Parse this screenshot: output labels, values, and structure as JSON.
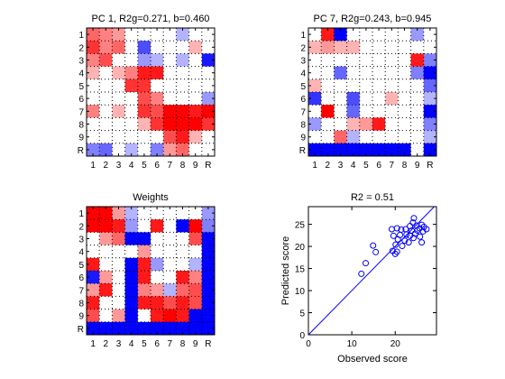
{
  "chart_data": [
    {
      "type": "heatmap",
      "title": "PC 1, R2g=0.271, b=0.460",
      "x_ticks": [
        "1",
        "2",
        "3",
        "4",
        "5",
        "6",
        "7",
        "8",
        "9",
        "R"
      ],
      "y_ticks": [
        "1",
        "2",
        "3",
        "4",
        "5",
        "6",
        "7",
        "8",
        "9",
        "R"
      ],
      "grid": "dotted",
      "value_range": [
        -1,
        1
      ],
      "cells": [
        [
          0.6,
          0.5,
          0.4,
          0,
          0,
          0,
          0,
          -0.3,
          0,
          0
        ],
        [
          0.8,
          0.5,
          0.6,
          0,
          -0.7,
          0,
          0,
          0,
          0.3,
          0
        ],
        [
          0.5,
          0.7,
          0,
          0,
          -0.4,
          -0.3,
          0,
          -0.3,
          0,
          -0.9
        ],
        [
          0.3,
          0,
          0.3,
          0.5,
          0.9,
          0.9,
          0,
          0,
          0,
          0
        ],
        [
          0,
          0,
          0,
          0.8,
          0.8,
          0,
          0,
          0,
          0,
          0
        ],
        [
          0,
          0,
          0,
          0,
          0.7,
          0.5,
          0,
          0,
          0,
          -0.4
        ],
        [
          0.5,
          0,
          0.3,
          0,
          0.8,
          0.7,
          1.0,
          1.0,
          0.9,
          1.0
        ],
        [
          0,
          0,
          0,
          0,
          0.3,
          0.8,
          1.0,
          1.0,
          1.0,
          0.8
        ],
        [
          0,
          0,
          0,
          0,
          0,
          0,
          0.7,
          0.9,
          0.3,
          0
        ],
        [
          -0.5,
          -0.6,
          0,
          -0.3,
          0,
          -0.5,
          0.4,
          0.6,
          0,
          0
        ]
      ]
    },
    {
      "type": "heatmap",
      "title": "PC 7, R2g=0.243, b=0.945",
      "x_ticks": [
        "1",
        "2",
        "3",
        "4",
        "5",
        "6",
        "7",
        "8",
        "9",
        "R"
      ],
      "y_ticks": [
        "1",
        "2",
        "3",
        "4",
        "5",
        "6",
        "7",
        "8",
        "9",
        "R"
      ],
      "grid": "dotted",
      "value_range": [
        -1,
        1
      ],
      "cells": [
        [
          0,
          0.9,
          -1.0,
          0,
          0,
          0,
          0,
          0,
          -0.4,
          0
        ],
        [
          0.3,
          0.4,
          0.3,
          0.3,
          0,
          0,
          0,
          0,
          0,
          0
        ],
        [
          0,
          0,
          0,
          0,
          0,
          0,
          0,
          0,
          0.9,
          -0.5
        ],
        [
          0,
          0,
          -0.6,
          0,
          0,
          0,
          0,
          0,
          -0.5,
          -1.0
        ],
        [
          0.3,
          0,
          0,
          0,
          0,
          0,
          0,
          0,
          0,
          -0.6
        ],
        [
          -0.8,
          0,
          0,
          -0.7,
          0,
          0,
          0.3,
          0,
          0,
          -0.3
        ],
        [
          0,
          1.0,
          0,
          -0.6,
          0,
          0,
          0,
          0,
          0,
          -1.0
        ],
        [
          -0.4,
          0,
          0,
          0.3,
          0.4,
          0.9,
          0,
          0,
          0,
          -0.5
        ],
        [
          0,
          0,
          0.6,
          -0.3,
          0,
          0,
          0,
          0,
          0,
          -0.3
        ],
        [
          -1.0,
          -1.0,
          -1.0,
          -1.0,
          -1.0,
          -1.0,
          -1.0,
          -1.0,
          0,
          -1.0
        ]
      ]
    },
    {
      "type": "heatmap",
      "title": "Weights",
      "x_ticks": [
        "1",
        "2",
        "3",
        "4",
        "5",
        "6",
        "7",
        "8",
        "9",
        "R"
      ],
      "y_ticks": [
        "1",
        "2",
        "3",
        "4",
        "5",
        "6",
        "7",
        "8",
        "9",
        "R"
      ],
      "grid": "dotted",
      "value_range": [
        -1,
        1
      ],
      "cells": [
        [
          1.0,
          1.0,
          0.4,
          -0.3,
          0,
          0,
          0,
          0,
          0,
          -0.4
        ],
        [
          1.0,
          1.0,
          0.9,
          -0.4,
          0,
          0.9,
          0,
          -1.0,
          1.0,
          -0.5
        ],
        [
          0,
          0.4,
          0.6,
          -1.0,
          -1.0,
          0,
          0,
          0,
          0.7,
          -1.0
        ],
        [
          0,
          0,
          0,
          0,
          0.4,
          0,
          0,
          0,
          0,
          -1.0
        ],
        [
          0.9,
          0,
          0,
          -1.0,
          0.9,
          -0.4,
          0,
          0,
          -0.3,
          -1.0
        ],
        [
          -0.9,
          0.4,
          0,
          -1.0,
          0.9,
          0,
          0,
          0.9,
          0.5,
          -1.0
        ],
        [
          0.4,
          0.9,
          0,
          -1.0,
          0.5,
          0.4,
          -0.3,
          0.6,
          0.7,
          -1.0
        ],
        [
          0.9,
          0,
          0,
          -1.0,
          0.9,
          0.9,
          0.7,
          0.9,
          0.7,
          -1.0
        ],
        [
          0.7,
          0,
          0.4,
          -1.0,
          0,
          0.9,
          1.0,
          0.9,
          -1.0,
          -1.0
        ],
        [
          -1.0,
          -1.0,
          -1.0,
          -1.0,
          -1.0,
          -1.0,
          -1.0,
          -1.0,
          -1.0,
          -1.0
        ]
      ]
    },
    {
      "type": "scatter",
      "title": "R2 = 0.51",
      "xlabel": "Observed score",
      "ylabel": "Predicted score",
      "xlim": [
        0,
        29.5
      ],
      "ylim": [
        0,
        29
      ],
      "x_ticks": [
        0,
        10,
        20
      ],
      "y_ticks": [
        0,
        5,
        10,
        15,
        20,
        25
      ],
      "reference_line": "y = x",
      "marker": "open-circle",
      "color": "#0000ff",
      "points": [
        [
          12.2,
          13.8
        ],
        [
          13.2,
          16.2
        ],
        [
          15.5,
          18.7
        ],
        [
          14.9,
          20.2
        ],
        [
          19.4,
          19.0
        ],
        [
          20.0,
          18.3
        ],
        [
          20.4,
          18.8
        ],
        [
          20.1,
          20.4
        ],
        [
          20.6,
          21.6
        ],
        [
          19.6,
          22.4
        ],
        [
          19.2,
          23.9
        ],
        [
          20.4,
          24.1
        ],
        [
          21.6,
          20.1
        ],
        [
          21.1,
          22.6
        ],
        [
          21.4,
          23.8
        ],
        [
          22.2,
          21.3
        ],
        [
          22.6,
          22.7
        ],
        [
          22.4,
          23.9
        ],
        [
          23.1,
          20.9
        ],
        [
          23.4,
          22.4
        ],
        [
          23.8,
          23.6
        ],
        [
          23.4,
          24.6
        ],
        [
          24.2,
          21.9
        ],
        [
          24.1,
          25.4
        ],
        [
          24.3,
          26.4
        ],
        [
          24.6,
          22.9
        ],
        [
          24.9,
          24.7
        ],
        [
          25.1,
          23.6
        ],
        [
          25.7,
          22.2
        ],
        [
          25.6,
          24.1
        ],
        [
          26.1,
          24.9
        ],
        [
          26.1,
          20.9
        ],
        [
          26.4,
          23.4
        ],
        [
          26.6,
          24.4
        ],
        [
          27.2,
          23.9
        ]
      ]
    }
  ]
}
